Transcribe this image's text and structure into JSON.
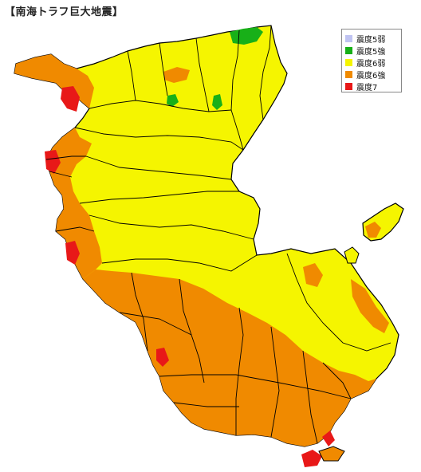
{
  "title": "【南海トラフ巨大地震】",
  "legend": {
    "items": [
      {
        "label": "震度5弱",
        "color": "#c0c4f2"
      },
      {
        "label": "震度5強",
        "color": "#18b018"
      },
      {
        "label": "震度6弱",
        "color": "#f5f500"
      },
      {
        "label": "震度6強",
        "color": "#f08a00"
      },
      {
        "label": "震度7",
        "color": "#e81818"
      }
    ]
  },
  "colors": {
    "yellow": "#f5f500",
    "orange": "#f08a00",
    "red": "#e81818",
    "green": "#18b018",
    "border": "#000000"
  }
}
